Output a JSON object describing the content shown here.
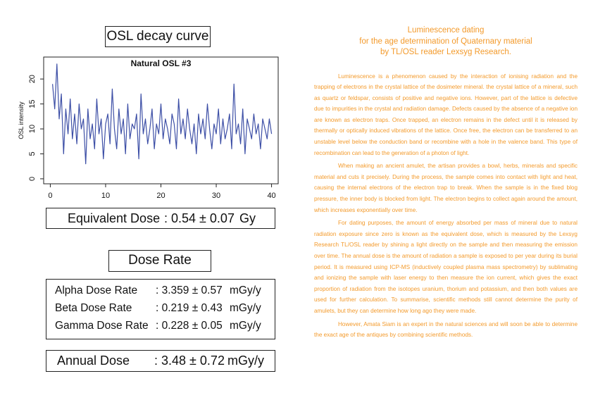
{
  "osl": {
    "title": "OSL decay curve"
  },
  "chart_data": {
    "type": "line",
    "title": "Natural OSL #3",
    "xlabel": "",
    "ylabel": "OSL intensity",
    "xlim": [
      0,
      40
    ],
    "ylim": [
      0,
      24
    ],
    "x_ticks": [
      0,
      10,
      20,
      30,
      40
    ],
    "y_ticks": [
      0,
      5,
      10,
      15,
      20
    ],
    "grid": false,
    "colors": {
      "line": "#3d4fa6"
    },
    "series": [
      {
        "x": [
          0.4,
          0.8,
          1.2,
          1.6,
          2,
          2.4,
          2.8,
          3.2,
          3.6,
          4,
          4.4,
          4.8,
          5.2,
          5.6,
          6,
          6.4,
          6.8,
          7.2,
          7.6,
          8,
          8.4,
          8.8,
          9.2,
          9.6,
          10,
          10.4,
          10.8,
          11.2,
          11.6,
          12,
          12.4,
          12.8,
          13.2,
          13.6,
          14,
          14.4,
          14.8,
          15.2,
          15.6,
          16,
          16.4,
          16.8,
          17.2,
          17.6,
          18,
          18.4,
          18.8,
          19.2,
          19.6,
          20,
          20.4,
          20.8,
          21.2,
          21.6,
          22,
          22.4,
          22.8,
          23.2,
          23.6,
          24,
          24.4,
          24.8,
          25.2,
          25.6,
          26,
          26.4,
          26.8,
          27.2,
          27.6,
          28,
          28.4,
          28.8,
          29.2,
          29.6,
          30,
          30.4,
          30.8,
          31.2,
          31.6,
          32,
          32.4,
          32.8,
          33.2,
          33.6,
          34,
          34.4,
          34.8,
          35.2,
          35.6,
          36,
          36.4,
          36.8,
          37.2,
          37.6,
          38,
          38.4,
          38.8,
          39.2,
          39.6,
          40
        ],
        "values": [
          19,
          14,
          23,
          12,
          17,
          5,
          14,
          9,
          16,
          8,
          13,
          7,
          15,
          10,
          12,
          3,
          14,
          8,
          11,
          6,
          16,
          9,
          12,
          4,
          11,
          13,
          7,
          18,
          10,
          6,
          14,
          9,
          12,
          5,
          15,
          8,
          11,
          10,
          13,
          4,
          17,
          9,
          12,
          7,
          10,
          14,
          6,
          11,
          9,
          15,
          8,
          12,
          10,
          7,
          13,
          11,
          6,
          16,
          9,
          12,
          8,
          14,
          10,
          7,
          11,
          5,
          13,
          9,
          12,
          8,
          15,
          10,
          6,
          11,
          9,
          14,
          7,
          12,
          8,
          10,
          13,
          6,
          19,
          9,
          11,
          7,
          14,
          5,
          12,
          10,
          8,
          13,
          9,
          11,
          6,
          12,
          10,
          8,
          12,
          9
        ]
      }
    ]
  },
  "equivalent_dose": {
    "label": "Equivalent Dose",
    "value": ": 0.54 ± 0.07",
    "unit": "Gy"
  },
  "dose_rate": {
    "title": "Dose Rate",
    "rows": [
      {
        "label": "Alpha Dose Rate",
        "value": ": 3.359 ± 0.57",
        "unit": "mGy/y"
      },
      {
        "label": "Beta Dose Rate",
        "value": ": 0.219 ± 0.43",
        "unit": "mGy/y"
      },
      {
        "label": "Gamma Dose Rate",
        "value": ": 0.228 ± 0.05",
        "unit": "mGy/y"
      }
    ]
  },
  "annual_dose": {
    "label": "Annual Dose",
    "value": ": 3.48 ± 0.72",
    "unit": "mGy/y"
  },
  "article": {
    "title_lines": [
      "Luminescence dating",
      "for the age determination of Quaternary material",
      "by TL/OSL reader Lexsyg Research."
    ],
    "paragraphs": [
      "Luminescence is a phenomenon caused by the interaction of ionising radiation and the trapping of electrons in the crystal lattice of the dosimeter mineral. the crystal lattice of a mineral, such as quartz or feldspar, consists of positive and negative ions. However, part of the lattice is defective due to impurities in the crystal and radiation damage. Defects caused by the absence of a negative ion are known as electron traps. Once trapped, an electron remains in the defect until it is released by thermally or optically induced vibrations of the lattice. Once free, the electron can be transferred to an unstable level below the conduction band or recombine with a hole in the valence band. This type of recombination can lead to the generation of a photon of light.",
      "When making an ancient amulet, the artisan provides a bowl, herbs, minerals and specific material and cuts it precisely. During the process, the sample comes into contact with light and heat, causing the internal electrons of the electron trap to break. When the sample is in the fixed blog pressure, the inner body is blocked from light. The electron begins to collect again around the amount, which increases exponentially over time.",
      "For dating purposes, the amount of energy absorbed per mass of mineral due to natural radiation exposure since zero is known as the equivalent dose, which is measured by the Lexsyg Research TL/OSL reader by shining a light directly on the sample and then measuring the emission over time. The annual dose is the amount of radiation a sample is exposed to per year during its burial period. It is measured using ICP-MS (inductively coupled plasma mass spectrometry) by sublimating and ionizing the sample with laser energy to then measure the ion current, which gives the exact proportion of radiation from the isotopes uranium, thorium and potassium, and then both values are used for further calculation. To summarise, scientific methods still cannot determine the purity of amulets, but they can determine how long ago they were made.",
      "However, Amata Siam is an expert in the natural sciences and will soon be able to determine the exact age of the antiques by combining scientific methods."
    ]
  }
}
